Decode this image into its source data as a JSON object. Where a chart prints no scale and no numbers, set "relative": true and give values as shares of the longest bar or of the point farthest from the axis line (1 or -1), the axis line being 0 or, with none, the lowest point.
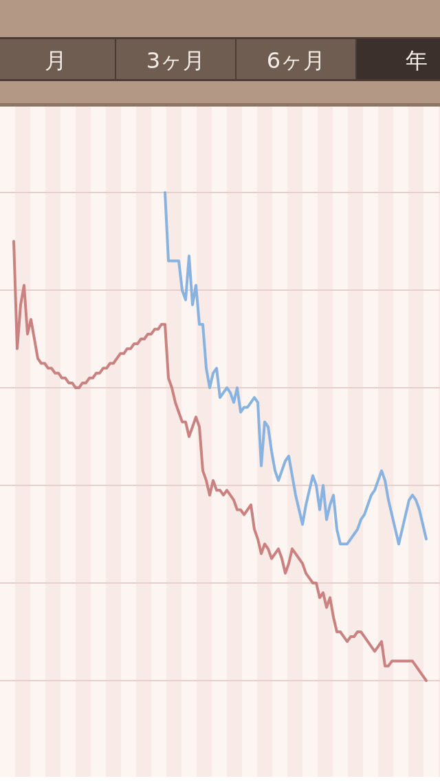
{
  "chart_data": {
    "type": "line",
    "relative": true,
    "grid": true,
    "annotations": [
      "月",
      "3ヶ月",
      "6ヶ月",
      "年"
    ],
    "categories": [
      null,
      null,
      null,
      null,
      null,
      null,
      null,
      null,
      null,
      null,
      null,
      null,
      null,
      null,
      null,
      null,
      null,
      null,
      null,
      null,
      null,
      null,
      null,
      null,
      null,
      null,
      null,
      null,
      null,
      null,
      null,
      null,
      null,
      null,
      null,
      null,
      null,
      null,
      null,
      null,
      null,
      null,
      null,
      null,
      null,
      null,
      null,
      null,
      null,
      null,
      null,
      null,
      null,
      null,
      null,
      null,
      null,
      null,
      null,
      null,
      null,
      null,
      null,
      null,
      null,
      null,
      null,
      null,
      null,
      null,
      null,
      null,
      null,
      null,
      null,
      null,
      null,
      null,
      null,
      null,
      null,
      null,
      null,
      null,
      null,
      null,
      null,
      null,
      null,
      null,
      null,
      null,
      null,
      null,
      null,
      null,
      null,
      null,
      null,
      null,
      null,
      null,
      null,
      null,
      null,
      null,
      null,
      null,
      null,
      null,
      null,
      null,
      null,
      null,
      null,
      null,
      null,
      null,
      null,
      null,
      null
    ],
    "series": [
      {
        "color": "#c98280",
        "values": [
          0.9,
          0.68,
          0.77,
          0.81,
          0.71,
          0.74,
          0.7,
          0.66,
          0.65,
          0.65,
          0.64,
          0.64,
          0.63,
          0.63,
          0.62,
          0.62,
          0.61,
          0.61,
          0.6,
          0.6,
          0.61,
          0.61,
          0.62,
          0.62,
          0.63,
          0.63,
          0.64,
          0.64,
          0.65,
          0.65,
          0.66,
          0.67,
          0.67,
          0.68,
          0.68,
          0.69,
          0.69,
          0.7,
          0.7,
          0.71,
          0.71,
          0.72,
          0.72,
          0.73,
          0.73,
          0.62,
          0.6,
          0.57,
          0.55,
          0.53,
          0.53,
          0.5,
          0.52,
          0.54,
          0.52,
          0.43,
          0.41,
          0.38,
          0.41,
          0.39,
          0.39,
          0.38,
          0.39,
          0.38,
          0.37,
          0.35,
          0.35,
          0.34,
          0.35,
          0.36,
          0.31,
          0.29,
          0.26,
          0.28,
          0.27,
          0.25,
          0.26,
          0.27,
          0.25,
          0.22,
          0.24,
          0.27,
          0.26,
          0.25,
          0.24,
          0.22,
          0.21,
          0.2,
          0.2,
          0.17,
          0.18,
          0.15,
          0.17,
          0.13,
          0.1,
          0.1,
          0.09,
          0.08,
          0.09,
          0.09,
          0.1,
          0.1,
          0.09,
          0.08,
          0.07,
          0.06,
          0.07,
          0.08,
          0.03,
          0.03,
          0.04,
          0.04,
          0.04,
          0.04,
          0.04,
          0.04,
          0.04,
          0.03,
          0.02,
          0.01,
          0
        ]
      },
      {
        "color": "#88b3e0",
        "values": [
          null,
          null,
          null,
          null,
          null,
          null,
          null,
          null,
          null,
          null,
          null,
          null,
          null,
          null,
          null,
          null,
          null,
          null,
          null,
          null,
          null,
          null,
          null,
          null,
          null,
          null,
          null,
          null,
          null,
          null,
          null,
          null,
          null,
          null,
          null,
          null,
          null,
          null,
          null,
          null,
          null,
          null,
          null,
          null,
          1,
          0.86,
          0.86,
          0.86,
          0.86,
          0.8,
          0.78,
          0.87,
          0.77,
          0.81,
          0.73,
          0.73,
          0.64,
          0.6,
          0.63,
          0.64,
          0.58,
          0.59,
          0.6,
          0.59,
          0.57,
          0.6,
          0.55,
          0.56,
          0.56,
          0.57,
          0.58,
          0.57,
          0.44,
          0.53,
          0.52,
          0.47,
          0.43,
          0.41,
          0.43,
          0.45,
          0.46,
          0.42,
          0.38,
          0.35,
          0.32,
          0.36,
          0.39,
          0.42,
          0.4,
          0.35,
          0.4,
          0.33,
          0.36,
          0.38,
          0.31,
          0.28,
          0.28,
          0.28,
          0.29,
          0.3,
          0.31,
          0.33,
          0.34,
          0.36,
          0.38,
          0.39,
          0.41,
          0.43,
          0.41,
          0.37,
          0.34,
          0.31,
          0.28,
          0.31,
          0.34,
          0.37,
          0.38,
          0.37,
          0.35,
          0.32,
          0.29
        ]
      }
    ]
  }
}
